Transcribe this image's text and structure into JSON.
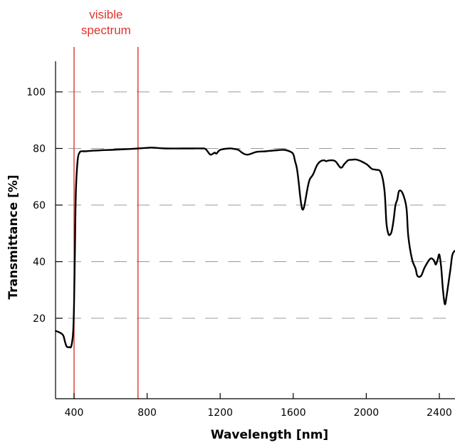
{
  "chart_data": {
    "type": "line",
    "title": "",
    "xlabel": "Wavelength [nm]",
    "ylabel": "Transmittance [%]",
    "xlim": [
      300,
      2500
    ],
    "ylim": [
      0,
      110
    ],
    "x_ticks": [
      400,
      800,
      1200,
      1600,
      2000,
      2400
    ],
    "x_tick_labels": [
      "400",
      "800",
      "1200",
      "1600",
      "2000",
      "2400"
    ],
    "y_ticks": [
      20,
      40,
      60,
      80,
      100
    ],
    "y_tick_labels": [
      "20",
      "40",
      "60",
      "80",
      "100"
    ],
    "grid": "horizontal dashed",
    "line_color": "#000000",
    "annotation": {
      "label_lines": [
        "visible",
        "spectrum"
      ],
      "x_start": 400,
      "x_end": 750,
      "color": "#e0342a"
    },
    "series": [
      {
        "x": [
          300,
          320,
          340,
          350,
          360,
          375,
          385,
          395,
          400,
          405,
          410,
          420,
          430,
          440,
          460,
          500,
          600,
          700,
          750,
          800,
          820,
          850,
          900,
          1000,
          1050,
          1100,
          1120,
          1140,
          1150,
          1170,
          1180,
          1200,
          1250,
          1280,
          1300,
          1320,
          1350,
          1400,
          1450,
          1500,
          1550,
          1580,
          1600,
          1610,
          1620,
          1630,
          1640,
          1650,
          1660,
          1670,
          1680,
          1690,
          1700,
          1710,
          1730,
          1750,
          1770,
          1780,
          1800,
          1830,
          1860,
          1880,
          1900,
          1920,
          1950,
          2000,
          2030,
          2050,
          2080,
          2100,
          2110,
          2120,
          2130,
          2140,
          2150,
          2160,
          2170,
          2180,
          2200,
          2220,
          2230,
          2250,
          2270,
          2280,
          2300,
          2320,
          2350,
          2370,
          2380,
          2390,
          2400,
          2410,
          2420,
          2430,
          2440,
          2460,
          2470,
          2480,
          2490,
          2500
        ],
        "y": [
          15.5,
          15,
          14,
          11.8,
          10,
          9.8,
          10.2,
          15,
          25,
          45,
          65,
          76,
          78.5,
          79,
          79,
          79.2,
          79.5,
          79.8,
          80,
          80.2,
          80.3,
          80.2,
          80,
          80,
          80,
          80,
          79.8,
          78.2,
          77.8,
          78.5,
          78.2,
          79.5,
          80,
          79.8,
          79.5,
          78.5,
          77.8,
          78.8,
          79,
          79.3,
          79.5,
          79,
          78,
          75.5,
          73,
          68,
          62,
          58.5,
          59.5,
          63,
          66.5,
          69,
          70,
          71,
          74,
          75.5,
          75.8,
          75.5,
          75.8,
          75.5,
          73.2,
          74.5,
          75.8,
          76,
          76,
          74.5,
          72.8,
          72.5,
          71.5,
          65,
          54,
          50,
          49.5,
          51,
          55,
          60,
          62,
          65,
          64,
          59,
          49,
          41,
          37.5,
          35,
          35,
          38,
          41,
          40.5,
          39,
          40.5,
          42.5,
          38,
          30,
          25,
          28,
          37,
          42,
          43.5,
          44,
          44
        ]
      }
    ]
  }
}
